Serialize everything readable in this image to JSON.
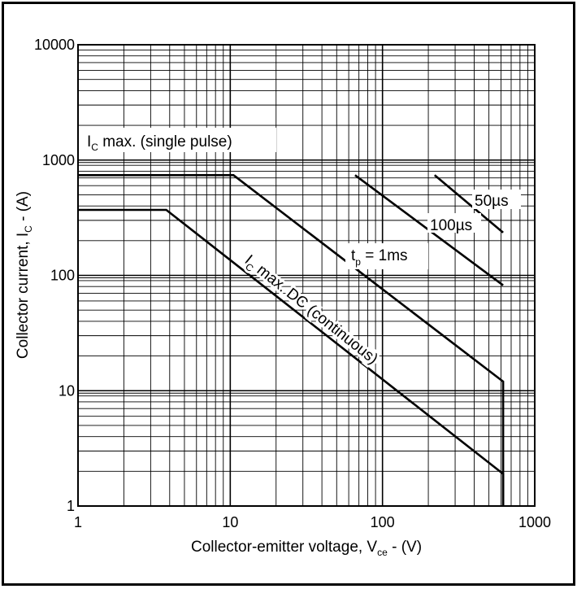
{
  "chart_data": {
    "type": "line",
    "x_scale": "log",
    "y_scale": "log",
    "xlim": [
      1,
      1000
    ],
    "ylim": [
      1,
      10000
    ],
    "grid": true,
    "xlabel": {
      "main": "Collector-emitter voltage, V",
      "sub": "ce",
      "tail": " - (V)"
    },
    "ylabel": {
      "main": "Collector current, I",
      "sub": "C",
      "tail": " - (A)"
    },
    "x_ticks": [
      {
        "value": 1,
        "label": "1"
      },
      {
        "value": 10,
        "label": "10"
      },
      {
        "value": 100,
        "label": "100"
      },
      {
        "value": 1000,
        "label": "1000"
      }
    ],
    "y_ticks": [
      {
        "value": 1,
        "label": "1"
      },
      {
        "value": 10,
        "label": "10"
      },
      {
        "value": 100,
        "label": "100"
      },
      {
        "value": 1000,
        "label": "1000"
      },
      {
        "value": 10000,
        "label": "10000"
      }
    ],
    "series": [
      {
        "id": "dc",
        "points": [
          [
            1,
            370
          ],
          [
            3.8,
            370
          ],
          [
            620,
            1.9
          ],
          [
            620,
            1
          ]
        ]
      },
      {
        "id": "1ms",
        "points": [
          [
            1,
            740
          ],
          [
            10.5,
            740
          ],
          [
            620,
            12
          ],
          [
            620,
            1
          ]
        ]
      },
      {
        "id": "100us",
        "points": [
          [
            66,
            740
          ],
          [
            620,
            82
          ]
        ]
      },
      {
        "id": "50us",
        "points": [
          [
            220,
            740
          ],
          [
            620,
            235
          ]
        ]
      }
    ],
    "annotations": [
      {
        "id": "single-pulse",
        "main": "I",
        "sub": "C",
        "tail": " max. (single pulse)"
      },
      {
        "id": "dc-continuous",
        "main": "I",
        "sub": "C",
        "tail": " max. DC (continuous)"
      },
      {
        "id": "tp-1ms",
        "main": "t",
        "sub": "p",
        "tail": " = 1ms"
      },
      {
        "id": "100us",
        "text": "100µs"
      },
      {
        "id": "50us",
        "text": "50µs"
      }
    ]
  }
}
